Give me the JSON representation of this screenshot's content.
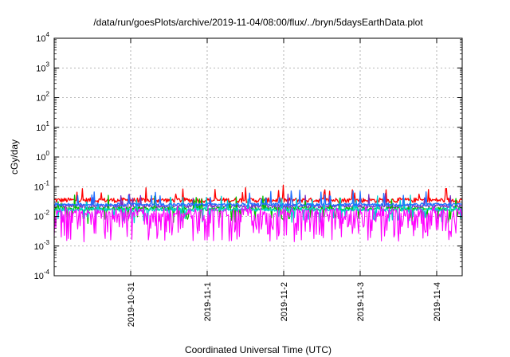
{
  "chart_data": {
    "type": "line",
    "title": "/data/run/goesPlots/archive/2019-11-04/08:00/flux/../bryn/5daysEarthData.plot",
    "xlabel": "Coordinated Universal Time (UTC)",
    "ylabel": "cGy/day",
    "yscale": "log",
    "ylim": [
      0.0001,
      10000
    ],
    "xlim": [
      "2019-10-30T00:00",
      "2019-11-04T08:00"
    ],
    "x_ticks": [
      "2019-10-31",
      "2019-11-1",
      "2019-11-2",
      "2019-11-3",
      "2019-11-4"
    ],
    "y_ticks": [
      {
        "base": "10",
        "exp": "4"
      },
      {
        "base": "10",
        "exp": "3"
      },
      {
        "base": "10",
        "exp": "2"
      },
      {
        "base": "10",
        "exp": "1"
      },
      {
        "base": "10",
        "exp": "0"
      },
      {
        "base": "10",
        "exp": "-1"
      },
      {
        "base": "10",
        "exp": "-2"
      },
      {
        "base": "10",
        "exp": "-3"
      },
      {
        "base": "10",
        "exp": "-4"
      }
    ],
    "grid": true,
    "legend": "none",
    "series": [
      {
        "color": "#ff0000",
        "level": 0.035,
        "spread": 0.08,
        "dips": false
      },
      {
        "color": "#7b2fbf",
        "level": 0.022,
        "spread": 0.06,
        "dips": false
      },
      {
        "color": "#00c000",
        "level": 0.018,
        "spread": 0.06,
        "dips": true
      },
      {
        "color": "#00d0d0",
        "level": 0.017,
        "spread": 0.06,
        "dips": true
      },
      {
        "color": "#1e6fff",
        "level": 0.025,
        "spread": 0.05,
        "dips": false
      },
      {
        "color": "#ff00ff",
        "level": 0.0055,
        "spread": 0.6,
        "dips": false,
        "spikes_to": 0.017
      }
    ]
  }
}
